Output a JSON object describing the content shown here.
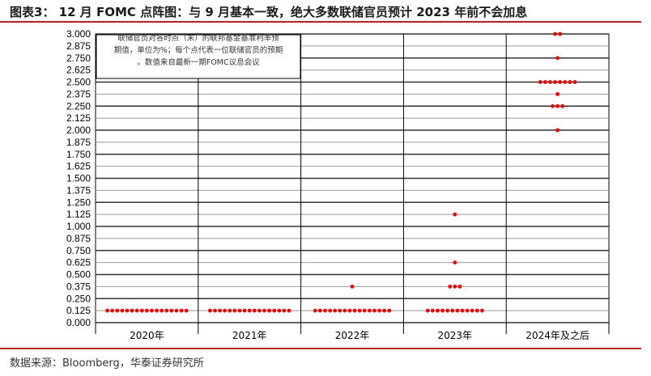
{
  "header": {
    "title": "图表3： 12 月 FOMC 点阵图：与 9 月基本一致，绝大多数联储官员预计 2023 年前不会加息"
  },
  "footer": {
    "source": "数据来源：Bloomberg，华泰证券研究所",
    "watermark": "华泰证券"
  },
  "colors": {
    "dot": "#e60000",
    "accent_rule": "#b22222",
    "grid_dark": "#333333",
    "grid_light": "#999999"
  },
  "chart_data": {
    "type": "scatter",
    "categories": [
      "2020年",
      "2021年",
      "2022年",
      "2023年",
      "2024年及之后"
    ],
    "ylim": [
      0,
      3.0
    ],
    "yticks": [
      "3.000",
      "2.875",
      "2.750",
      "2.625",
      "2.500",
      "2.375",
      "2.250",
      "2.125",
      "2.000",
      "1.875",
      "1.750",
      "1.625",
      "1.500",
      "1.375",
      "1.250",
      "1.125",
      "1.000",
      "0.875",
      "0.750",
      "0.625",
      "0.500",
      "0.375",
      "0.250",
      "0.125",
      "0.000"
    ],
    "annotation": "联储官员对各时点（末）的联邦基金基准利率预期值，单位为%；每个点代表一位联储官员的预期。数值来自最新一期FOMC议息会议",
    "annotation_lines": [
      "联储官员对各时点（末）的联邦基金基准利率预",
      "期值，单位为%；每个点代表一位联储官员的预期",
      "。数值来自最新一期FOMC议息会议"
    ],
    "dots": [
      {
        "category": "2020年",
        "values": [
          {
            "rate": 0.125,
            "count": 17
          }
        ]
      },
      {
        "category": "2021年",
        "values": [
          {
            "rate": 0.125,
            "count": 17
          }
        ]
      },
      {
        "category": "2022年",
        "values": [
          {
            "rate": 0.125,
            "count": 16
          },
          {
            "rate": 0.375,
            "count": 1
          }
        ]
      },
      {
        "category": "2023年",
        "values": [
          {
            "rate": 0.125,
            "count": 12
          },
          {
            "rate": 0.375,
            "count": 3
          },
          {
            "rate": 0.625,
            "count": 1
          },
          {
            "rate": 1.125,
            "count": 1
          }
        ]
      },
      {
        "category": "2024年及之后",
        "values": [
          {
            "rate": 2.0,
            "count": 1
          },
          {
            "rate": 2.25,
            "count": 3
          },
          {
            "rate": 2.375,
            "count": 1
          },
          {
            "rate": 2.5,
            "count": 8
          },
          {
            "rate": 2.75,
            "count": 1
          },
          {
            "rate": 3.0,
            "count": 2
          }
        ]
      }
    ]
  }
}
